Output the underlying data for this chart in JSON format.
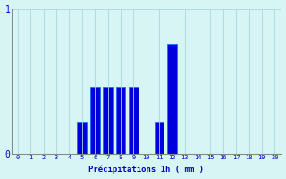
{
  "x_values": [
    0,
    1,
    2,
    3,
    4,
    5,
    6,
    7,
    8,
    9,
    10,
    11,
    12,
    13,
    14,
    15,
    16,
    17,
    18,
    19,
    20
  ],
  "bar_heights": [
    0,
    0,
    0,
    0,
    0,
    0.22,
    0.46,
    0.46,
    0.46,
    0.46,
    0,
    0.22,
    0.76,
    0,
    0,
    0,
    0,
    0,
    0,
    0,
    0
  ],
  "bar_color": "#0000dd",
  "bar_edge_color": "#1166ff",
  "background_color": "#d8f5f5",
  "grid_color": "#a8d8d8",
  "xlabel": "Précipitations 1h ( mm )",
  "xlabel_color": "#0000cc",
  "tick_color": "#0000cc",
  "ylim": [
    0,
    1.0
  ],
  "xlim": [
    -0.5,
    20.5
  ],
  "yticks": [
    0,
    1
  ],
  "ytick_labels": [
    "0",
    "1"
  ],
  "xticks": [
    0,
    1,
    2,
    3,
    4,
    5,
    6,
    7,
    8,
    9,
    10,
    11,
    12,
    13,
    14,
    15,
    16,
    17,
    18,
    19,
    20
  ],
  "bar_width": 0.75
}
